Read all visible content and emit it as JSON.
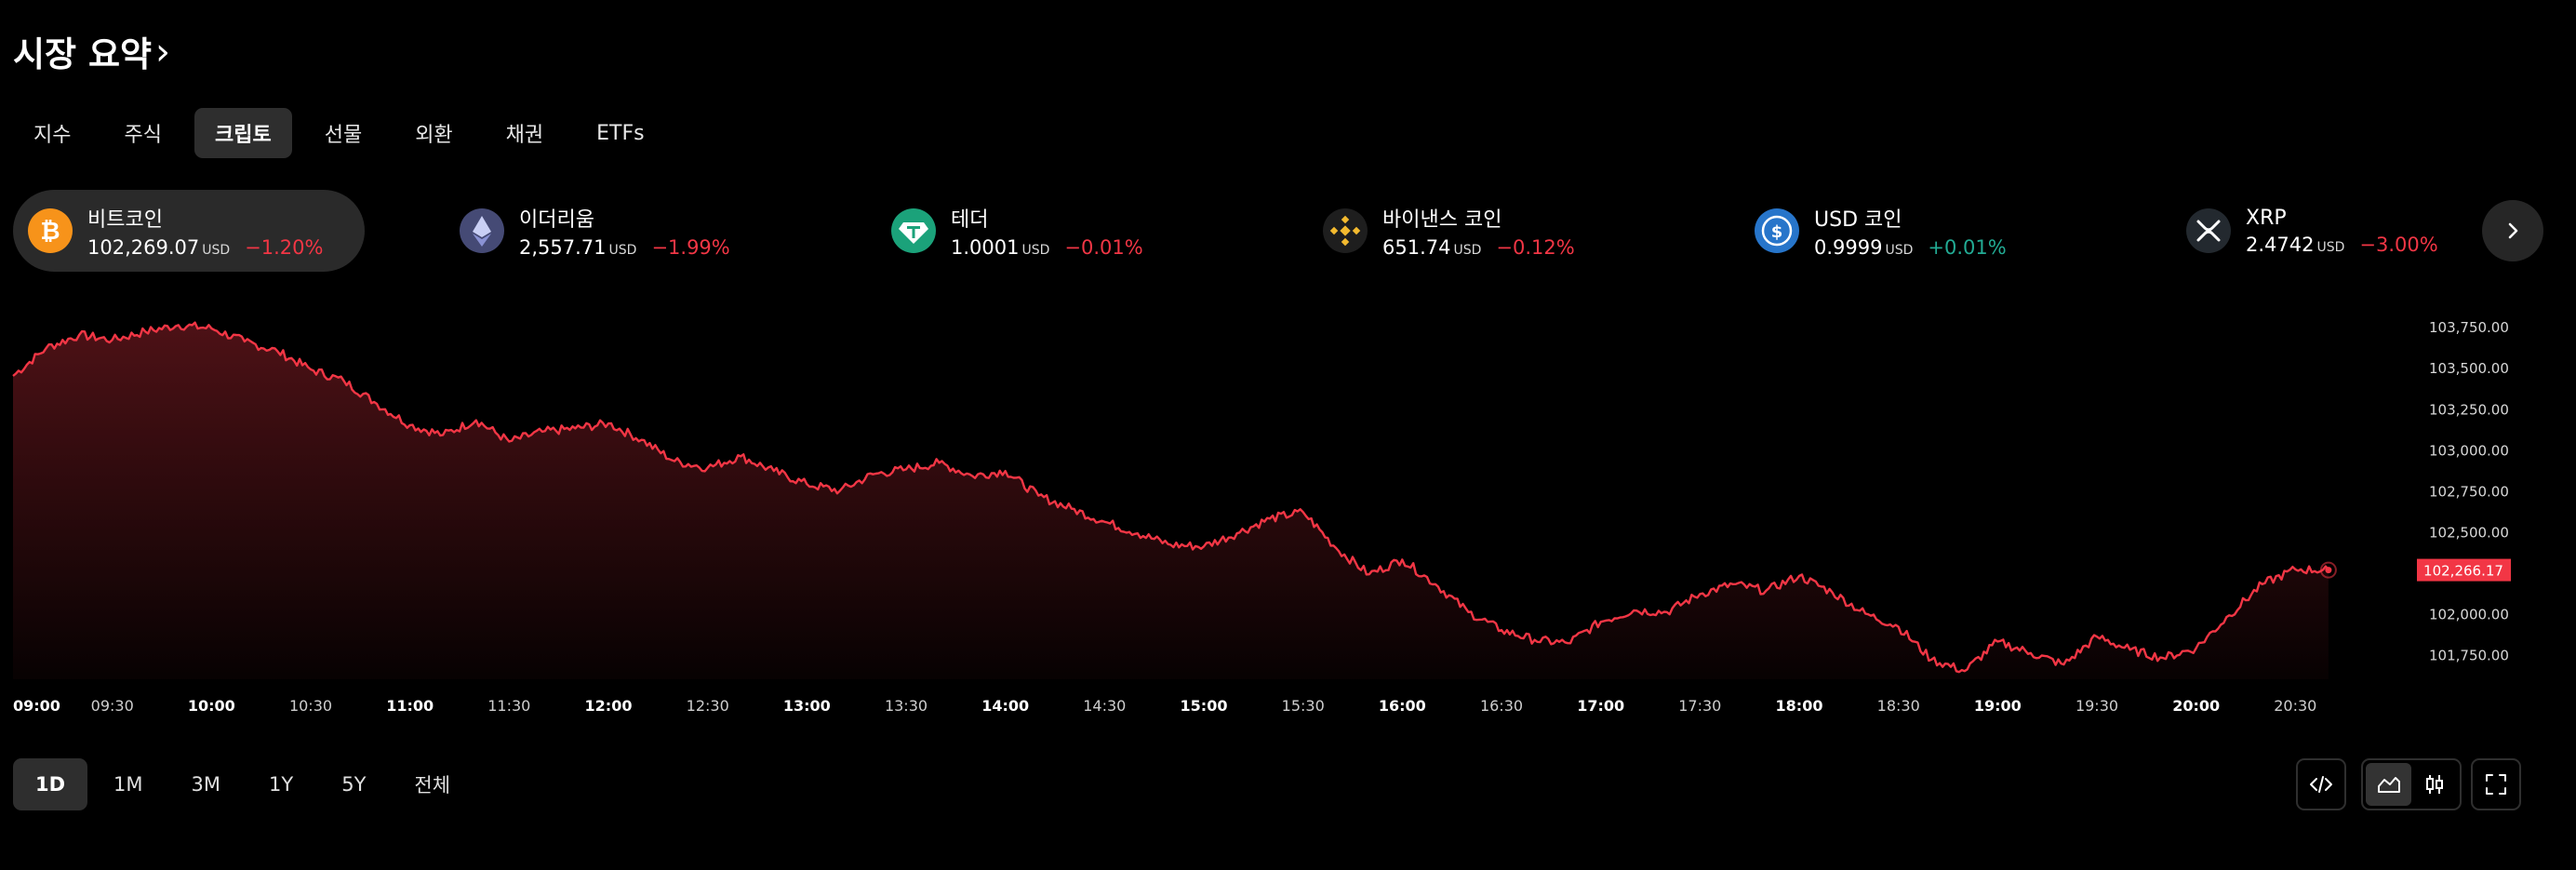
{
  "header": {
    "title": "시장 요약",
    "chevron": "›"
  },
  "tabs": [
    {
      "label": "지수",
      "active": false
    },
    {
      "label": "주식",
      "active": false
    },
    {
      "label": "크립토",
      "active": true
    },
    {
      "label": "선물",
      "active": false
    },
    {
      "label": "외환",
      "active": false
    },
    {
      "label": "채권",
      "active": false
    },
    {
      "label": "ETFs",
      "active": false
    }
  ],
  "tickers": [
    {
      "name": "비트코인",
      "price": "102,269.07",
      "unit": "USD",
      "change": "−1.20%",
      "direction": "down",
      "icon": "bitcoin-icon",
      "color": "#f7931a",
      "active": true
    },
    {
      "name": "이더리움",
      "price": "2,557.71",
      "unit": "USD",
      "change": "−1.99%",
      "direction": "down",
      "icon": "ethereum-icon",
      "color": "#454a75",
      "active": false
    },
    {
      "name": "테더",
      "price": "1.0001",
      "unit": "USD",
      "change": "−0.01%",
      "direction": "down",
      "icon": "tether-icon",
      "color": "#1ba27a",
      "active": false
    },
    {
      "name": "바이낸스 코인",
      "price": "651.74",
      "unit": "USD",
      "change": "−0.12%",
      "direction": "down",
      "icon": "binance-coin-icon",
      "color": "#f3ba2f",
      "active": false
    },
    {
      "name": "USD 코인",
      "price": "0.9999",
      "unit": "USD",
      "change": "+0.01%",
      "direction": "up",
      "icon": "usd-coin-icon",
      "color": "#2775ca",
      "active": false
    },
    {
      "name": "XRP",
      "price": "2.4742",
      "unit": "USD",
      "change": "−3.00%",
      "direction": "down",
      "icon": "xrp-icon",
      "color": "#23292f",
      "active": false
    }
  ],
  "ranges": [
    {
      "label": "1D",
      "active": true
    },
    {
      "label": "1M",
      "active": false
    },
    {
      "label": "3M",
      "active": false
    },
    {
      "label": "1Y",
      "active": false
    },
    {
      "label": "5Y",
      "active": false
    },
    {
      "label": "전체",
      "active": false
    }
  ],
  "toolbar": {
    "embed_icon": "code-icon",
    "area_icon": "area-chart-icon",
    "candles_icon": "candlestick-icon",
    "fullscreen_icon": "fullscreen-icon",
    "next_icon": "chevron-right-icon"
  },
  "colors": {
    "background": "#000000",
    "negative": "#f23645",
    "positive": "#22ab94",
    "line": "#f23645",
    "active_bg": "#2e2e2e"
  },
  "chart_data": {
    "type": "area",
    "series": [
      {
        "name": "비트코인",
        "color": "#f23645"
      }
    ],
    "x_ticks": [
      "09:00",
      "09:30",
      "10:00",
      "10:30",
      "11:00",
      "11:30",
      "12:00",
      "12:30",
      "13:00",
      "13:30",
      "14:00",
      "14:30",
      "15:00",
      "15:30",
      "16:00",
      "16:30",
      "17:00",
      "17:30",
      "18:00",
      "18:30",
      "19:00",
      "19:30",
      "20:00",
      "20:30"
    ],
    "x_ticks_bold": [
      true,
      false,
      true,
      false,
      true,
      false,
      true,
      false,
      true,
      false,
      true,
      false,
      true,
      false,
      true,
      false,
      true,
      false,
      true,
      false,
      true,
      false,
      true,
      false
    ],
    "y_ticks": [
      "103,750.00",
      "103,500.00",
      "103,250.00",
      "103,000.00",
      "102,750.00",
      "102,500.00",
      "102,000.00",
      "101,750.00"
    ],
    "y_tick_values": [
      103750,
      103500,
      103250,
      103000,
      102750,
      102500,
      102000,
      101750
    ],
    "ylim": [
      101600,
      103870
    ],
    "last_value": 102266.17,
    "last_value_label": "102,266.17",
    "points": [
      [
        "09:00",
        103450
      ],
      [
        "09:10",
        103620
      ],
      [
        "09:20",
        103700
      ],
      [
        "09:30",
        103670
      ],
      [
        "09:40",
        103720
      ],
      [
        "09:50",
        103760
      ],
      [
        "10:00",
        103740
      ],
      [
        "10:10",
        103660
      ],
      [
        "10:20",
        103600
      ],
      [
        "10:30",
        103490
      ],
      [
        "10:40",
        103420
      ],
      [
        "10:50",
        103280
      ],
      [
        "11:00",
        103150
      ],
      [
        "11:10",
        103090
      ],
      [
        "11:20",
        103180
      ],
      [
        "11:30",
        103050
      ],
      [
        "11:40",
        103110
      ],
      [
        "11:50",
        103130
      ],
      [
        "12:00",
        103160
      ],
      [
        "12:10",
        103060
      ],
      [
        "12:20",
        102930
      ],
      [
        "12:30",
        102890
      ],
      [
        "12:40",
        102960
      ],
      [
        "12:50",
        102870
      ],
      [
        "13:00",
        102790
      ],
      [
        "13:10",
        102750
      ],
      [
        "13:20",
        102850
      ],
      [
        "13:30",
        102880
      ],
      [
        "13:40",
        102920
      ],
      [
        "13:50",
        102840
      ],
      [
        "14:00",
        102870
      ],
      [
        "14:10",
        102720
      ],
      [
        "14:20",
        102640
      ],
      [
        "14:30",
        102560
      ],
      [
        "14:40",
        102490
      ],
      [
        "14:50",
        102420
      ],
      [
        "15:00",
        102410
      ],
      [
        "15:10",
        102490
      ],
      [
        "15:20",
        102580
      ],
      [
        "15:30",
        102620
      ],
      [
        "15:40",
        102400
      ],
      [
        "15:50",
        102240
      ],
      [
        "16:00",
        102330
      ],
      [
        "16:10",
        102180
      ],
      [
        "16:20",
        102010
      ],
      [
        "16:30",
        101900
      ],
      [
        "16:40",
        101840
      ],
      [
        "16:50",
        101820
      ],
      [
        "17:00",
        101950
      ],
      [
        "17:10",
        102020
      ],
      [
        "17:20",
        102010
      ],
      [
        "17:30",
        102120
      ],
      [
        "17:40",
        102180
      ],
      [
        "17:50",
        102140
      ],
      [
        "18:00",
        102230
      ],
      [
        "18:10",
        102130
      ],
      [
        "18:20",
        102000
      ],
      [
        "18:30",
        101920
      ],
      [
        "18:40",
        101720
      ],
      [
        "18:50",
        101650
      ],
      [
        "19:00",
        101830
      ],
      [
        "19:10",
        101760
      ],
      [
        "19:20",
        101690
      ],
      [
        "19:30",
        101860
      ],
      [
        "19:40",
        101780
      ],
      [
        "19:50",
        101730
      ],
      [
        "20:00",
        101790
      ],
      [
        "20:10",
        101990
      ],
      [
        "20:20",
        102180
      ],
      [
        "20:30",
        102270
      ],
      [
        "20:40",
        102266.17
      ]
    ]
  }
}
